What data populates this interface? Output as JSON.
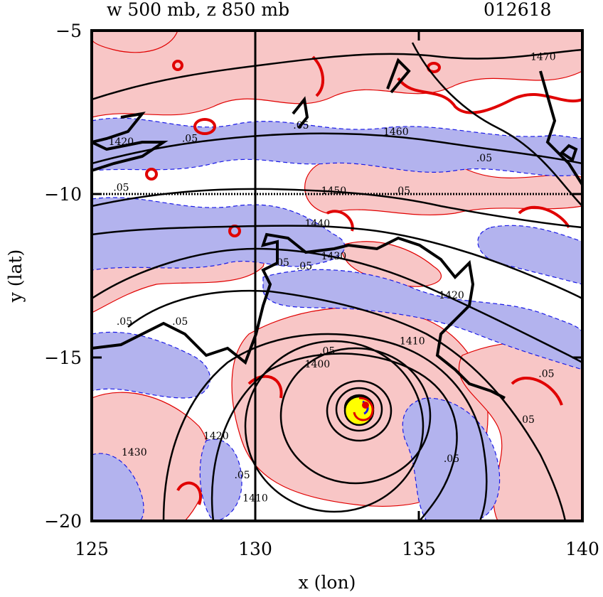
{
  "figure": {
    "title_left": "w 500 mb, z 850 mb",
    "title_right": "012618"
  },
  "colors": {
    "upward_fill": "#f8c6c6",
    "downward_fill": "#b3b3ee",
    "positive_contour": "#e00000",
    "negative_contour": "#1a1ae6",
    "height_contour": "#000000",
    "center_fill": "#ffff00"
  },
  "chart_data": {
    "type": "contour",
    "xlabel": "x (lon)",
    "ylabel": "y (lat)",
    "xlim": [
      125,
      140
    ],
    "ylim": [
      -20,
      -5
    ],
    "xticks": [
      125,
      130,
      135,
      140
    ],
    "yticks": [
      -5,
      -10,
      -15,
      -20
    ],
    "xtick_labels": [
      "125",
      "130",
      "135",
      "140"
    ],
    "ytick_labels": [
      "−5",
      "−10",
      "−15",
      "−20"
    ],
    "reference_lines": {
      "lon": 130,
      "lat": -10
    },
    "center": {
      "lon": 133.3,
      "lat": -16.6
    },
    "height_contour_labels": [
      {
        "text": "1470",
        "lon": 138.8,
        "lat": -5.9
      },
      {
        "text": "1460",
        "lon": 134.3,
        "lat": -8.2
      },
      {
        "text": "1450",
        "lon": 132.4,
        "lat": -10.0
      },
      {
        "text": "1440",
        "lon": 131.9,
        "lat": -11.0
      },
      {
        "text": "1430",
        "lon": 132.4,
        "lat": -12.0
      },
      {
        "text": "1420",
        "lon": 136.0,
        "lat": -13.2
      },
      {
        "text": "1410",
        "lon": 134.8,
        "lat": -14.6
      },
      {
        "text": "1400",
        "lon": 131.9,
        "lat": -15.3
      },
      {
        "text": "1420",
        "lon": 128.8,
        "lat": -17.5
      },
      {
        "text": "1430",
        "lon": 126.3,
        "lat": -18.0
      },
      {
        "text": "1410",
        "lon": 130.0,
        "lat": -19.4
      },
      {
        "text": "1420",
        "lon": 125.9,
        "lat": -8.5
      }
    ],
    "w_contour_labels": [
      {
        "text": ".05",
        "lon": 128.0,
        "lat": -8.4
      },
      {
        "text": ".05",
        "lon": 125.9,
        "lat": -9.9
      },
      {
        "text": ".05",
        "lon": 131.4,
        "lat": -8.0
      },
      {
        "text": ".05",
        "lon": 134.5,
        "lat": -10.0
      },
      {
        "text": ".05",
        "lon": 130.8,
        "lat": -12.2
      },
      {
        "text": ".05",
        "lon": 131.5,
        "lat": -12.3
      },
      {
        "text": ".05",
        "lon": 126.0,
        "lat": -14.0
      },
      {
        "text": ".05",
        "lon": 127.7,
        "lat": -14.0
      },
      {
        "text": ".05",
        "lon": 132.2,
        "lat": -14.9
      },
      {
        "text": ".05",
        "lon": 137.0,
        "lat": -9.0
      },
      {
        "text": ".05",
        "lon": 138.9,
        "lat": -15.6
      },
      {
        "text": ".05",
        "lon": 138.3,
        "lat": -17.0
      },
      {
        "text": ".05",
        "lon": 136.0,
        "lat": -18.2
      },
      {
        "text": ".05",
        "lon": 129.6,
        "lat": -18.7
      }
    ]
  }
}
